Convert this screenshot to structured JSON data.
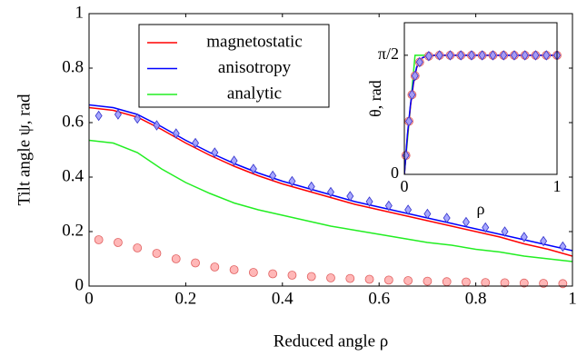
{
  "chart_data": [
    {
      "type": "line",
      "xlabel": "Reduced angle ρ",
      "ylabel": "Tilt angle ψ, rad",
      "xlim": [
        0,
        1
      ],
      "ylim": [
        0,
        1
      ],
      "xticks": [
        0,
        0.2,
        0.4,
        0.6,
        0.8,
        1
      ],
      "yticks": [
        0,
        0.2,
        0.4,
        0.6,
        0.8,
        1
      ],
      "grid": false,
      "legend": "upper left",
      "series": [
        {
          "name": "magnetostatic",
          "color": "#ff0000",
          "style": "line",
          "x": [
            0,
            0.05,
            0.1,
            0.15,
            0.2,
            0.25,
            0.3,
            0.35,
            0.4,
            0.45,
            0.5,
            0.55,
            0.6,
            0.65,
            0.7,
            0.75,
            0.8,
            0.85,
            0.9,
            0.95,
            1
          ],
          "values": [
            0.655,
            0.645,
            0.62,
            0.575,
            0.525,
            0.48,
            0.44,
            0.405,
            0.375,
            0.35,
            0.325,
            0.3,
            0.28,
            0.26,
            0.24,
            0.22,
            0.2,
            0.18,
            0.155,
            0.135,
            0.11
          ]
        },
        {
          "name": "anisotropy",
          "color": "#0000ff",
          "style": "line",
          "x": [
            0,
            0.05,
            0.1,
            0.15,
            0.2,
            0.25,
            0.3,
            0.35,
            0.4,
            0.45,
            0.5,
            0.55,
            0.6,
            0.65,
            0.7,
            0.75,
            0.8,
            0.85,
            0.9,
            0.95,
            1
          ],
          "values": [
            0.665,
            0.655,
            0.63,
            0.585,
            0.535,
            0.49,
            0.45,
            0.415,
            0.385,
            0.36,
            0.335,
            0.31,
            0.29,
            0.27,
            0.25,
            0.23,
            0.21,
            0.19,
            0.17,
            0.15,
            0.13
          ]
        },
        {
          "name": "analytic",
          "color": "#22ee22",
          "style": "line",
          "x": [
            0,
            0.05,
            0.1,
            0.15,
            0.2,
            0.25,
            0.3,
            0.35,
            0.4,
            0.45,
            0.5,
            0.55,
            0.6,
            0.65,
            0.7,
            0.75,
            0.8,
            0.85,
            0.9,
            0.95,
            1
          ],
          "values": [
            0.535,
            0.525,
            0.49,
            0.43,
            0.38,
            0.34,
            0.305,
            0.28,
            0.26,
            0.24,
            0.22,
            0.205,
            0.19,
            0.175,
            0.16,
            0.15,
            0.135,
            0.125,
            0.11,
            0.1,
            0.09
          ]
        },
        {
          "color": "#e06060",
          "style": "circle",
          "x": [
            0.02,
            0.06,
            0.1,
            0.14,
            0.18,
            0.22,
            0.26,
            0.3,
            0.34,
            0.38,
            0.42,
            0.46,
            0.5,
            0.54,
            0.58,
            0.62,
            0.66,
            0.7,
            0.74,
            0.78,
            0.82,
            0.86,
            0.9,
            0.94,
            0.98
          ],
          "values": [
            0.17,
            0.16,
            0.14,
            0.12,
            0.1,
            0.085,
            0.07,
            0.06,
            0.05,
            0.045,
            0.04,
            0.035,
            0.03,
            0.028,
            0.025,
            0.022,
            0.02,
            0.018,
            0.016,
            0.015,
            0.013,
            0.012,
            0.011,
            0.01,
            0.009
          ]
        },
        {
          "color": "#3333cc",
          "style": "diamond",
          "x": [
            0.02,
            0.06,
            0.1,
            0.14,
            0.18,
            0.22,
            0.26,
            0.3,
            0.34,
            0.38,
            0.42,
            0.46,
            0.5,
            0.54,
            0.58,
            0.62,
            0.66,
            0.7,
            0.74,
            0.78,
            0.82,
            0.86,
            0.9,
            0.94,
            0.98
          ],
          "values": [
            0.625,
            0.63,
            0.615,
            0.59,
            0.56,
            0.525,
            0.49,
            0.46,
            0.43,
            0.405,
            0.385,
            0.365,
            0.345,
            0.33,
            0.31,
            0.295,
            0.28,
            0.265,
            0.25,
            0.235,
            0.215,
            0.2,
            0.18,
            0.165,
            0.145
          ]
        }
      ]
    },
    {
      "type": "line",
      "xlabel": "ρ",
      "ylabel": "θ, rad",
      "xlim": [
        0,
        1
      ],
      "ylim": [
        0,
        2
      ],
      "xticks": [
        0,
        1
      ],
      "yticks": [
        0,
        {
          "value": 1.5708,
          "label": "π/2"
        }
      ],
      "grid": false,
      "series": [
        {
          "color": "#22ee22",
          "style": "line",
          "x": [
            0,
            0.07,
            1
          ],
          "values": [
            0,
            1.5708,
            1.5708
          ]
        },
        {
          "color": "#ff0000",
          "style": "line",
          "x": [
            0,
            0.02,
            0.04,
            0.06,
            0.08,
            0.1,
            0.12,
            0.15,
            0.2,
            0.3,
            0.5,
            0.7,
            1
          ],
          "values": [
            0,
            0.5,
            0.9,
            1.2,
            1.4,
            1.5,
            1.54,
            1.56,
            1.57,
            1.57,
            1.57,
            1.57,
            1.57
          ]
        },
        {
          "color": "#0000ff",
          "style": "line",
          "x": [
            0,
            0.02,
            0.04,
            0.06,
            0.08,
            0.1,
            0.12,
            0.15,
            0.2,
            0.3,
            0.5,
            0.7,
            1
          ],
          "values": [
            0,
            0.52,
            0.92,
            1.22,
            1.41,
            1.5,
            1.54,
            1.56,
            1.57,
            1.57,
            1.57,
            1.57,
            1.57
          ]
        },
        {
          "color": "#e06060",
          "style": "circle",
          "x": [
            0.01,
            0.03,
            0.05,
            0.07,
            0.1,
            0.16,
            0.23,
            0.3,
            0.37,
            0.44,
            0.51,
            0.58,
            0.65,
            0.72,
            0.79,
            0.86,
            0.93,
            1
          ],
          "values": [
            0.25,
            0.7,
            1.05,
            1.3,
            1.48,
            1.56,
            1.57,
            1.57,
            1.57,
            1.57,
            1.57,
            1.57,
            1.57,
            1.57,
            1.57,
            1.57,
            1.57,
            1.57
          ]
        },
        {
          "color": "#3333cc",
          "style": "diamond",
          "x": [
            0.01,
            0.03,
            0.05,
            0.07,
            0.1,
            0.16,
            0.23,
            0.3,
            0.37,
            0.44,
            0.51,
            0.58,
            0.65,
            0.72,
            0.79,
            0.86,
            0.93,
            1
          ],
          "values": [
            0.25,
            0.7,
            1.05,
            1.3,
            1.48,
            1.56,
            1.57,
            1.57,
            1.57,
            1.57,
            1.57,
            1.57,
            1.57,
            1.57,
            1.57,
            1.57,
            1.57,
            1.57
          ]
        }
      ]
    }
  ]
}
